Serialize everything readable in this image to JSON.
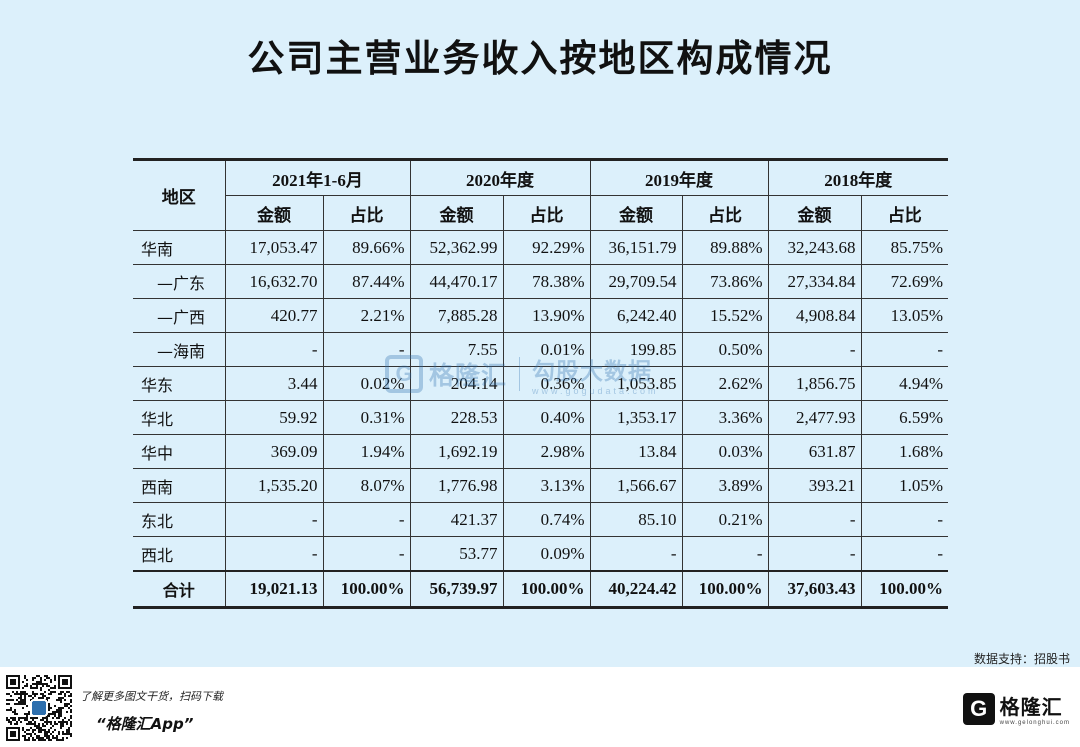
{
  "title": "公司主营业务收入按地区构成情况",
  "table": {
    "region_header": "地区",
    "periods": [
      "2021年1-6月",
      "2020年度",
      "2019年度",
      "2018年度"
    ],
    "amount_label": "金额",
    "share_label": "占比",
    "rows": [
      {
        "region": "华南",
        "sub": false,
        "cells": [
          "17,053.47",
          "89.66%",
          "52,362.99",
          "92.29%",
          "36,151.79",
          "89.88%",
          "32,243.68",
          "85.75%"
        ]
      },
      {
        "region": "—广东",
        "sub": true,
        "cells": [
          "16,632.70",
          "87.44%",
          "44,470.17",
          "78.38%",
          "29,709.54",
          "73.86%",
          "27,334.84",
          "72.69%"
        ]
      },
      {
        "region": "—广西",
        "sub": true,
        "cells": [
          "420.77",
          "2.21%",
          "7,885.28",
          "13.90%",
          "6,242.40",
          "15.52%",
          "4,908.84",
          "13.05%"
        ]
      },
      {
        "region": "—海南",
        "sub": true,
        "cells": [
          "-",
          "-",
          "7.55",
          "0.01%",
          "199.85",
          "0.50%",
          "-",
          "-"
        ]
      },
      {
        "region": "华东",
        "sub": false,
        "cells": [
          "3.44",
          "0.02%",
          "204.14",
          "0.36%",
          "1,053.85",
          "2.62%",
          "1,856.75",
          "4.94%"
        ]
      },
      {
        "region": "华北",
        "sub": false,
        "cells": [
          "59.92",
          "0.31%",
          "228.53",
          "0.40%",
          "1,353.17",
          "3.36%",
          "2,477.93",
          "6.59%"
        ]
      },
      {
        "region": "华中",
        "sub": false,
        "cells": [
          "369.09",
          "1.94%",
          "1,692.19",
          "2.98%",
          "13.84",
          "0.03%",
          "631.87",
          "1.68%"
        ]
      },
      {
        "region": "西南",
        "sub": false,
        "cells": [
          "1,535.20",
          "8.07%",
          "1,776.98",
          "3.13%",
          "1,566.67",
          "3.89%",
          "393.21",
          "1.05%"
        ]
      },
      {
        "region": "东北",
        "sub": false,
        "cells": [
          "-",
          "-",
          "421.37",
          "0.74%",
          "85.10",
          "0.21%",
          "-",
          "-"
        ]
      },
      {
        "region": "西北",
        "sub": false,
        "cells": [
          "-",
          "-",
          "53.77",
          "0.09%",
          "-",
          "-",
          "-",
          "-"
        ]
      }
    ],
    "total": {
      "region": "合计",
      "cells": [
        "19,021.13",
        "100.00%",
        "56,739.97",
        "100.00%",
        "40,224.42",
        "100.00%",
        "37,603.43",
        "100.00%"
      ]
    }
  },
  "watermark": {
    "logo_letter": "G",
    "brand": "格隆汇",
    "sub": "勾股大数据",
    "url": "www.gogudata.com"
  },
  "data_source": "数据支持：招股书",
  "footer": {
    "tagline": "了解更多图文干货，扫码下载",
    "app_name": "“格隆汇App”",
    "brand": "格隆汇",
    "brand_url": "www.gelonghui.com",
    "logo_letter": "G"
  },
  "colors": {
    "background": "#dcf0fb",
    "footer_background": "#ffffff",
    "watermark": "#2d6fae",
    "rule": "#222222"
  }
}
